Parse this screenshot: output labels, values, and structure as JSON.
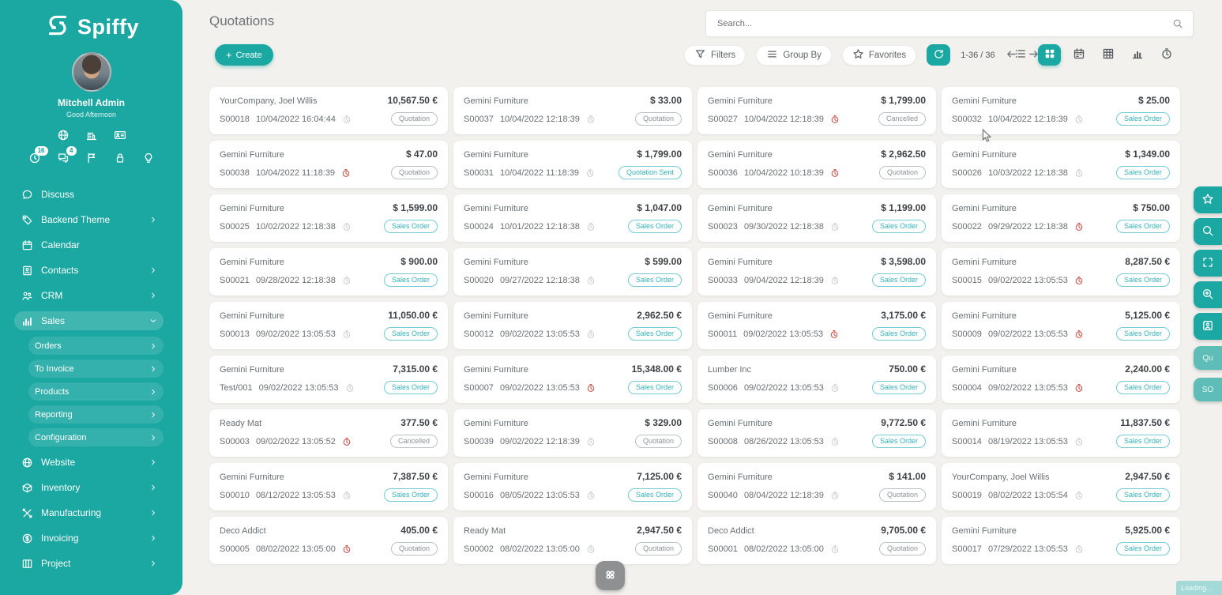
{
  "app": {
    "logo_text": "Spiffy"
  },
  "sidebar": {
    "user": {
      "name": "Mitchell Admin",
      "greeting": "Good Afternoon"
    },
    "quick_row1": [
      {
        "icon": "globe-icon"
      },
      {
        "icon": "company-icon"
      },
      {
        "icon": "id-card-icon"
      }
    ],
    "quick_row2": [
      {
        "icon": "activities-clock-icon",
        "badge": "16"
      },
      {
        "icon": "messages-icon",
        "badge": "4"
      },
      {
        "icon": "flag-icon"
      },
      {
        "icon": "lock-icon"
      },
      {
        "icon": "lightbulb-icon"
      }
    ],
    "menu": [
      {
        "label": "Discuss",
        "icon": "discuss-icon"
      },
      {
        "label": "Backend Theme",
        "icon": "theme-icon",
        "chevron": "right"
      },
      {
        "label": "Calendar",
        "icon": "calendar-icon"
      },
      {
        "label": "Contacts",
        "icon": "contacts-icon",
        "chevron": "right"
      },
      {
        "label": "CRM",
        "icon": "crm-icon",
        "chevron": "right"
      },
      {
        "label": "Sales",
        "icon": "sales-icon",
        "chevron": "down",
        "active": true
      },
      {
        "label": "Orders",
        "chevron": "right",
        "sub": true
      },
      {
        "label": "To Invoice",
        "chevron": "right",
        "sub": true
      },
      {
        "label": "Products",
        "chevron": "right",
        "sub": true
      },
      {
        "label": "Reporting",
        "chevron": "right",
        "sub": true
      },
      {
        "label": "Configuration",
        "chevron": "right",
        "sub": true
      },
      {
        "label": "Website",
        "icon": "website-icon",
        "chevron": "right"
      },
      {
        "label": "Inventory",
        "icon": "inventory-icon",
        "chevron": "right"
      },
      {
        "label": "Manufacturing",
        "icon": "manufacturing-icon",
        "chevron": "right"
      },
      {
        "label": "Invoicing",
        "icon": "invoicing-icon",
        "chevron": "right"
      },
      {
        "label": "Project",
        "icon": "project-icon",
        "chevron": "right"
      }
    ]
  },
  "header": {
    "title": "Quotations",
    "create_label": "Create"
  },
  "search": {
    "placeholder": "Search..."
  },
  "controls": {
    "filters": "Filters",
    "group_by": "Group By",
    "favorites": "Favorites",
    "pager": "1-36 / 36"
  },
  "views": [
    {
      "icon": "list-view-icon"
    },
    {
      "icon": "kanban-view-icon",
      "active": true
    },
    {
      "icon": "calendar-view-icon"
    },
    {
      "icon": "pivot-view-icon"
    },
    {
      "icon": "graph-view-icon"
    },
    {
      "icon": "activity-view-icon"
    }
  ],
  "kanban": {
    "status_styles": {
      "Quotation": "gray",
      "Quotation Sent": "teal",
      "Sales Order": "teal",
      "Cancelled": "gray"
    },
    "cards": [
      {
        "customer": "YourCompany, Joel Willis",
        "amount": "10,567.50 €",
        "reference": "S00018",
        "datetime": "10/04/2022 16:04:44",
        "clock": "gray",
        "status": "Quotation"
      },
      {
        "customer": "Gemini Furniture",
        "amount": "$ 33.00",
        "reference": "S00037",
        "datetime": "10/04/2022 12:18:39",
        "clock": "gray",
        "status": "Quotation"
      },
      {
        "customer": "Gemini Furniture",
        "amount": "$ 1,799.00",
        "reference": "S00027",
        "datetime": "10/04/2022 12:18:39",
        "clock": "red",
        "status": "Cancelled"
      },
      {
        "customer": "Gemini Furniture",
        "amount": "$ 25.00",
        "reference": "S00032",
        "datetime": "10/04/2022 12:18:39",
        "clock": "gray",
        "status": "Sales Order"
      },
      {
        "customer": "Gemini Furniture",
        "amount": "$ 47.00",
        "reference": "S00038",
        "datetime": "10/04/2022 11:18:39",
        "clock": "red",
        "status": "Quotation"
      },
      {
        "customer": "Gemini Furniture",
        "amount": "$ 1,799.00",
        "reference": "S00031",
        "datetime": "10/04/2022 11:18:39",
        "clock": "gray",
        "status": "Quotation Sent"
      },
      {
        "customer": "Gemini Furniture",
        "amount": "$ 2,962.50",
        "reference": "S00036",
        "datetime": "10/04/2022 10:18:39",
        "clock": "red",
        "status": "Quotation"
      },
      {
        "customer": "Gemini Furniture",
        "amount": "$ 1,349.00",
        "reference": "S00026",
        "datetime": "10/03/2022 12:18:38",
        "clock": "gray",
        "status": "Sales Order"
      },
      {
        "customer": "Gemini Furniture",
        "amount": "$ 1,599.00",
        "reference": "S00025",
        "datetime": "10/02/2022 12:18:38",
        "clock": "gray",
        "status": "Sales Order"
      },
      {
        "customer": "Gemini Furniture",
        "amount": "$ 1,047.00",
        "reference": "S00024",
        "datetime": "10/01/2022 12:18:38",
        "clock": "gray",
        "status": "Sales Order"
      },
      {
        "customer": "Gemini Furniture",
        "amount": "$ 1,199.00",
        "reference": "S00023",
        "datetime": "09/30/2022 12:18:38",
        "clock": "gray",
        "status": "Sales Order"
      },
      {
        "customer": "Gemini Furniture",
        "amount": "$ 750.00",
        "reference": "S00022",
        "datetime": "09/29/2022 12:18:38",
        "clock": "red",
        "status": "Sales Order"
      },
      {
        "customer": "Gemini Furniture",
        "amount": "$ 900.00",
        "reference": "S00021",
        "datetime": "09/28/2022 12:18:38",
        "clock": "gray",
        "status": "Sales Order"
      },
      {
        "customer": "Gemini Furniture",
        "amount": "$ 599.00",
        "reference": "S00020",
        "datetime": "09/27/2022 12:18:38",
        "clock": "gray",
        "status": "Sales Order"
      },
      {
        "customer": "Gemini Furniture",
        "amount": "$ 3,598.00",
        "reference": "S00033",
        "datetime": "09/04/2022 12:18:39",
        "clock": "gray",
        "status": "Sales Order"
      },
      {
        "customer": "Gemini Furniture",
        "amount": "8,287.50 €",
        "reference": "S00015",
        "datetime": "09/02/2022 13:05:53",
        "clock": "red",
        "status": "Sales Order"
      },
      {
        "customer": "Gemini Furniture",
        "amount": "11,050.00 €",
        "reference": "S00013",
        "datetime": "09/02/2022 13:05:53",
        "clock": "gray",
        "status": "Sales Order"
      },
      {
        "customer": "Gemini Furniture",
        "amount": "2,962.50 €",
        "reference": "S00012",
        "datetime": "09/02/2022 13:05:53",
        "clock": "gray",
        "status": "Sales Order"
      },
      {
        "customer": "Gemini Furniture",
        "amount": "3,175.00 €",
        "reference": "S00011",
        "datetime": "09/02/2022 13:05:53",
        "clock": "red",
        "status": "Sales Order"
      },
      {
        "customer": "Gemini Furniture",
        "amount": "5,125.00 €",
        "reference": "S00009",
        "datetime": "09/02/2022 13:05:53",
        "clock": "red",
        "status": "Sales Order"
      },
      {
        "customer": "Gemini Furniture",
        "amount": "7,315.00 €",
        "reference": "Test/001",
        "datetime": "09/02/2022 13:05:53",
        "clock": "gray",
        "status": "Sales Order"
      },
      {
        "customer": "Gemini Furniture",
        "amount": "15,348.00 €",
        "reference": "S00007",
        "datetime": "09/02/2022 13:05:53",
        "clock": "red",
        "status": "Sales Order"
      },
      {
        "customer": "Lumber Inc",
        "amount": "750.00 €",
        "reference": "S00006",
        "datetime": "09/02/2022 13:05:53",
        "clock": "gray",
        "status": "Sales Order"
      },
      {
        "customer": "Gemini Furniture",
        "amount": "2,240.00 €",
        "reference": "S00004",
        "datetime": "09/02/2022 13:05:53",
        "clock": "red",
        "status": "Sales Order"
      },
      {
        "customer": "Ready Mat",
        "amount": "377.50 €",
        "reference": "S00003",
        "datetime": "09/02/2022 13:05:52",
        "clock": "red",
        "status": "Cancelled"
      },
      {
        "customer": "Gemini Furniture",
        "amount": "$ 329.00",
        "reference": "S00039",
        "datetime": "09/02/2022 12:18:39",
        "clock": "gray",
        "status": "Quotation"
      },
      {
        "customer": "Gemini Furniture",
        "amount": "9,772.50 €",
        "reference": "S00008",
        "datetime": "08/26/2022 13:05:53",
        "clock": "gray",
        "status": "Sales Order"
      },
      {
        "customer": "Gemini Furniture",
        "amount": "11,837.50 €",
        "reference": "S00014",
        "datetime": "08/19/2022 13:05:53",
        "clock": "gray",
        "status": "Sales Order"
      },
      {
        "customer": "Gemini Furniture",
        "amount": "7,387.50 €",
        "reference": "S00010",
        "datetime": "08/12/2022 13:05:53",
        "clock": "gray",
        "status": "Sales Order"
      },
      {
        "customer": "Gemini Furniture",
        "amount": "7,125.00 €",
        "reference": "S00016",
        "datetime": "08/05/2022 13:05:53",
        "clock": "gray",
        "status": "Sales Order"
      },
      {
        "customer": "Gemini Furniture",
        "amount": "$ 141.00",
        "reference": "S00040",
        "datetime": "08/04/2022 12:18:39",
        "clock": "gray",
        "status": "Quotation"
      },
      {
        "customer": "YourCompany, Joel Willis",
        "amount": "2,947.50 €",
        "reference": "S00019",
        "datetime": "08/02/2022 13:05:54",
        "clock": "gray",
        "status": "Sales Order"
      },
      {
        "customer": "Deco Addict",
        "amount": "405.00 €",
        "reference": "S00005",
        "datetime": "08/02/2022 13:05:00",
        "clock": "red",
        "status": "Quotation"
      },
      {
        "customer": "Ready Mat",
        "amount": "2,947.50 €",
        "reference": "S00002",
        "datetime": "08/02/2022 13:05:00",
        "clock": "gray",
        "status": "Quotation"
      },
      {
        "customer": "Deco Addict",
        "amount": "9,705.00 €",
        "reference": "S00001",
        "datetime": "08/02/2022 13:05:00",
        "clock": "gray",
        "status": "Quotation"
      },
      {
        "customer": "Gemini Furniture",
        "amount": "5,925.00 €",
        "reference": "S00017",
        "datetime": "07/29/2022 13:05:53",
        "clock": "gray",
        "status": "Sales Order"
      }
    ]
  },
  "side_panel": [
    {
      "icon": "star-icon"
    },
    {
      "icon": "search-icon"
    },
    {
      "icon": "fullscreen-icon"
    },
    {
      "icon": "zoom-in-icon"
    },
    {
      "icon": "bookmark-icon"
    },
    {
      "label": "Qu",
      "lite": true
    },
    {
      "label": "SO",
      "lite": true
    }
  ],
  "footer": {
    "loading": "Loading..."
  },
  "colors": {
    "primary": "#1BA8A2",
    "badge_teal": "#35B0B8",
    "danger_red": "#C9443A"
  }
}
